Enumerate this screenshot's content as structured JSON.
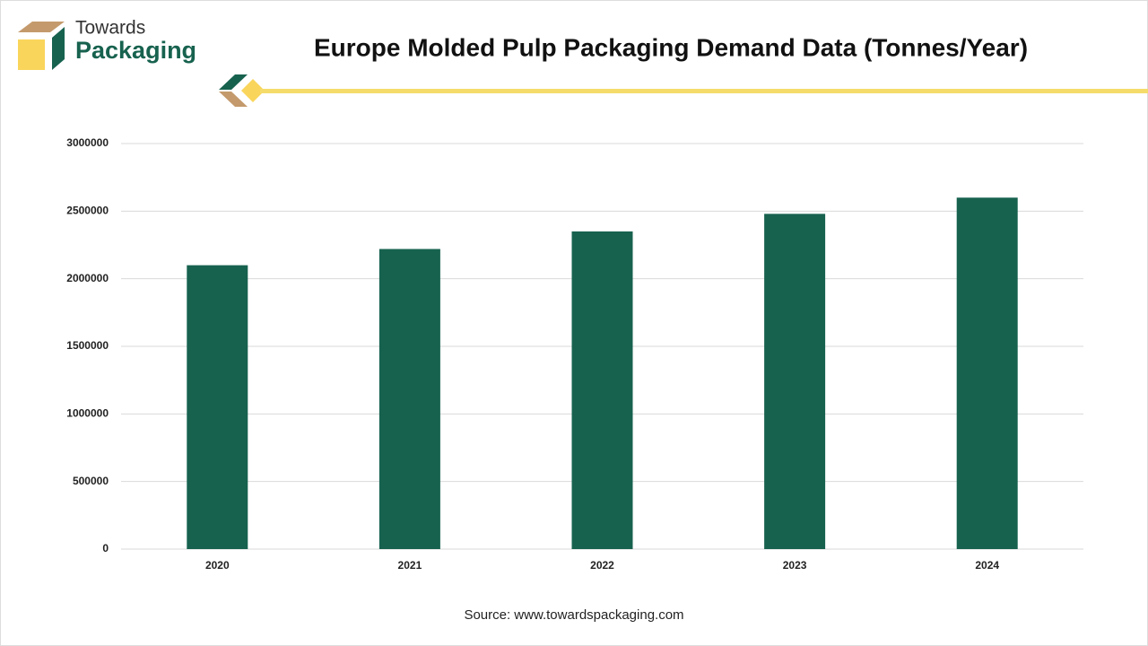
{
  "logo": {
    "line1": "Towards",
    "line2": "Packaging"
  },
  "chart_data": {
    "type": "bar",
    "title": "Europe Molded Pulp Packaging Demand Data (Tonnes/Year)",
    "categories": [
      "2020",
      "2021",
      "2022",
      "2023",
      "2024"
    ],
    "values": [
      2100000,
      2220000,
      2350000,
      2480000,
      2600000
    ],
    "color": "#17624f",
    "ylim": [
      0,
      3000000
    ],
    "yticks": [
      0,
      500000,
      1000000,
      1500000,
      2000000,
      2500000,
      3000000
    ],
    "grid": true,
    "source": "Source: www.towardspackaging.com"
  }
}
